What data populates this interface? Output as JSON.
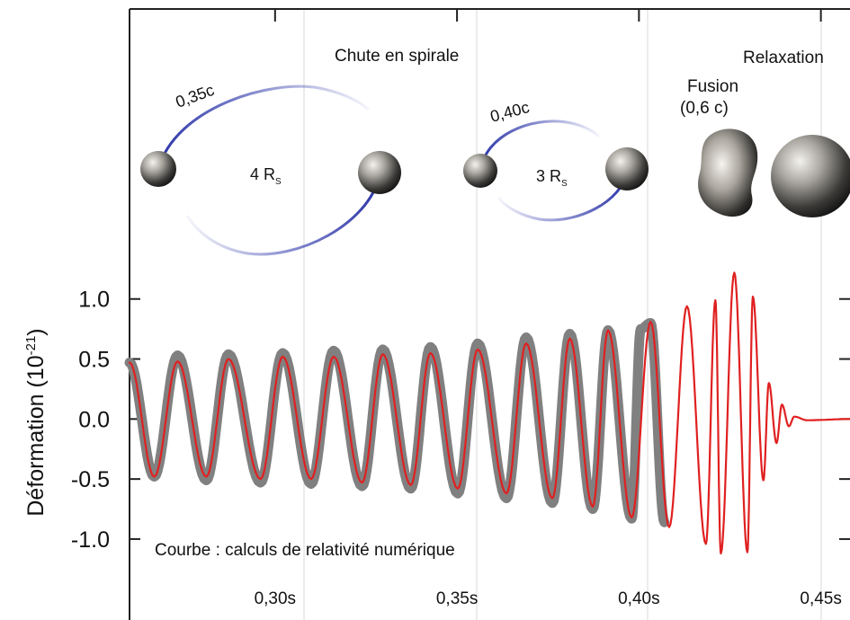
{
  "chart_data": {
    "type": "line",
    "title": "",
    "ylabel_main": "Déformation (10",
    "ylabel_exp": "-21",
    "ylabel_close": ")",
    "xlabel": "",
    "xlim": [
      0.26,
      0.458
    ],
    "ylim": [
      -1.3,
      1.32
    ],
    "y_ticks": [
      {
        "value": 1.0,
        "label": "1.0"
      },
      {
        "value": 0.5,
        "label": "0.5"
      },
      {
        "value": 0.0,
        "label": "0.0"
      },
      {
        "value": -0.5,
        "label": "-0.5"
      },
      {
        "value": -1.0,
        "label": "-1.0"
      }
    ],
    "x_ticks": [
      {
        "value": 0.3,
        "label": "0,30s"
      },
      {
        "value": 0.35,
        "label": "0,35s"
      },
      {
        "value": 0.4,
        "label": "0,40s"
      },
      {
        "value": 0.45,
        "label": "0,45s"
      }
    ],
    "grid": true,
    "series": [
      {
        "name": "",
        "color": "#808080",
        "points": [
          [
            0.26,
            0.47
          ],
          [
            0.2668,
            -0.48
          ],
          [
            0.2732,
            0.53
          ],
          [
            0.2811,
            -0.51
          ],
          [
            0.2872,
            0.54
          ],
          [
            0.296,
            -0.53
          ],
          [
            0.3021,
            0.55
          ],
          [
            0.3099,
            -0.54
          ],
          [
            0.3161,
            0.57
          ],
          [
            0.3239,
            -0.56
          ],
          [
            0.3296,
            0.58
          ],
          [
            0.3373,
            -0.58
          ],
          [
            0.3427,
            0.6
          ],
          [
            0.3502,
            -0.62
          ],
          [
            0.3557,
            0.63
          ],
          [
            0.3636,
            -0.66
          ],
          [
            0.369,
            0.68
          ],
          [
            0.3762,
            -0.7
          ],
          [
            0.381,
            0.71
          ],
          [
            0.3873,
            -0.75
          ],
          [
            0.3915,
            0.74
          ],
          [
            0.398,
            -0.83
          ],
          [
            0.4005,
            0.75
          ],
          [
            0.4032,
            0.8
          ],
          [
            0.407,
            -0.86
          ]
        ]
      },
      {
        "name": "",
        "color": "#e02020",
        "points": [
          [
            0.26,
            0.47
          ],
          [
            0.2668,
            -0.48
          ],
          [
            0.2732,
            0.48
          ],
          [
            0.2811,
            -0.48
          ],
          [
            0.2872,
            0.5
          ],
          [
            0.296,
            -0.5
          ],
          [
            0.3021,
            0.52
          ],
          [
            0.3099,
            -0.5
          ],
          [
            0.3161,
            0.52
          ],
          [
            0.3239,
            -0.53
          ],
          [
            0.3296,
            0.54
          ],
          [
            0.3373,
            -0.55
          ],
          [
            0.3427,
            0.55
          ],
          [
            0.3502,
            -0.58
          ],
          [
            0.3557,
            0.58
          ],
          [
            0.3636,
            -0.62
          ],
          [
            0.369,
            0.63
          ],
          [
            0.3762,
            -0.66
          ],
          [
            0.381,
            0.67
          ],
          [
            0.3873,
            -0.73
          ],
          [
            0.3915,
            0.74
          ],
          [
            0.398,
            -0.82
          ],
          [
            0.4032,
            0.81
          ],
          [
            0.4083,
            -0.9
          ],
          [
            0.4132,
            0.94
          ],
          [
            0.4184,
            -1.04
          ],
          [
            0.421,
            0.99
          ],
          [
            0.4225,
            -1.12
          ],
          [
            0.4262,
            1.22
          ],
          [
            0.4298,
            -1.11
          ],
          [
            0.4313,
            1.02
          ],
          [
            0.4342,
            -0.51
          ],
          [
            0.4357,
            0.3
          ],
          [
            0.4378,
            -0.2
          ],
          [
            0.4393,
            0.12
          ],
          [
            0.4412,
            -0.06
          ],
          [
            0.4427,
            0.02
          ],
          [
            0.4462,
            -0.01
          ],
          [
            0.458,
            0.0
          ]
        ]
      }
    ],
    "annotations": [
      {
        "text": "Courbe : calculs de relativité numérique"
      },
      {
        "text": "Chute en spirale"
      },
      {
        "text": "Relaxation"
      },
      {
        "text": "Fusion"
      },
      {
        "text": "(0,6 c)"
      },
      {
        "text": "0,35c"
      },
      {
        "text": "0,40c"
      },
      {
        "text": "4 R",
        "sub": "S"
      },
      {
        "text": "3 R",
        "sub": "S"
      }
    ]
  },
  "colors": {
    "gray_curve": "#808080",
    "red_curve": "#e02020",
    "orbit_blue": "#2b35a8",
    "axis": "#222222",
    "grid": "#d9d9d9"
  }
}
